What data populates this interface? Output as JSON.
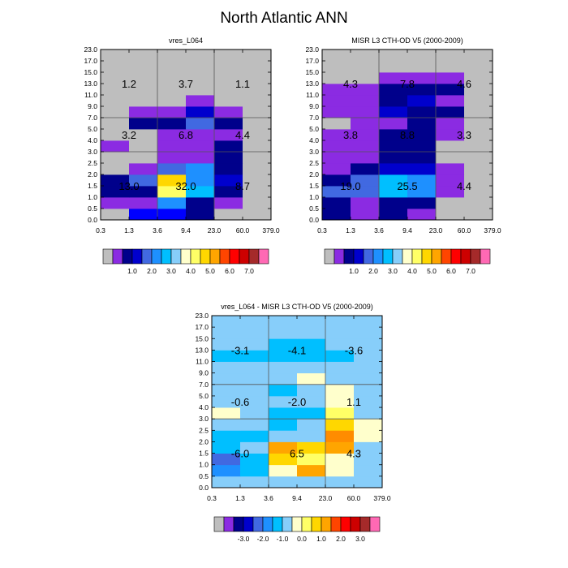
{
  "figure_title": "North Atlantic ANN",
  "chart_data": [
    {
      "type": "heatmap",
      "title": "vres_L064",
      "x_edges": [
        "0.3",
        "1.3",
        "3.6",
        "9.4",
        "23.0",
        "60.0",
        "379.0"
      ],
      "y_edges": [
        "0.0",
        "0.5",
        "1.0",
        "1.5",
        "2.0",
        "2.5",
        "3.0",
        "4.0",
        "5.0",
        "7.0",
        "9.0",
        "11.0",
        "13.0",
        "15.0",
        "17.0",
        "23.0"
      ],
      "cells": [
        [
          "#BEBEBE",
          "#0000FF",
          "#0000FF",
          "#00008B",
          "#BEBEBE",
          "#BEBEBE"
        ],
        [
          "#8B2BE2",
          "#8B2BE2",
          "#1E90FF",
          "#00008B",
          "#8B2BE2",
          "#BEBEBE"
        ],
        [
          "#00008B",
          "#00008B",
          "#FFFF66",
          "#00BFFF",
          "#00008B",
          "#BEBEBE"
        ],
        [
          "#00008B",
          "#4169E1",
          "#FFD700",
          "#1E90FF",
          "#0000CD",
          "#BEBEBE"
        ],
        [
          "#BEBEBE",
          "#8B2BE2",
          "#4169E1",
          "#1E90FF",
          "#00008B",
          "#BEBEBE"
        ],
        [
          "#BEBEBE",
          "#BEBEBE",
          "#8B2BE2",
          "#8B2BE2",
          "#00008B",
          "#BEBEBE"
        ],
        [
          "#8B2BE2",
          "#BEBEBE",
          "#8B2BE2",
          "#8B2BE2",
          "#00008B",
          "#BEBEBE"
        ],
        [
          "#BEBEBE",
          "#BEBEBE",
          "#8B2BE2",
          "#8B2BE2",
          "#8B2BE2",
          "#BEBEBE"
        ],
        [
          "#BEBEBE",
          "#00008B",
          "#00008B",
          "#4169E1",
          "#00008B",
          "#BEBEBE"
        ],
        [
          "#BEBEBE",
          "#8B2BE2",
          "#8B2BE2",
          "#0000CD",
          "#8B2BE2",
          "#BEBEBE"
        ],
        [
          "#BEBEBE",
          "#BEBEBE",
          "#BEBEBE",
          "#8B2BE2",
          "#BEBEBE",
          "#BEBEBE"
        ],
        [
          "#BEBEBE",
          "#BEBEBE",
          "#BEBEBE",
          "#BEBEBE",
          "#BEBEBE",
          "#BEBEBE"
        ],
        [
          "#BEBEBE",
          "#BEBEBE",
          "#BEBEBE",
          "#BEBEBE",
          "#BEBEBE",
          "#BEBEBE"
        ],
        [
          "#BEBEBE",
          "#BEBEBE",
          "#BEBEBE",
          "#BEBEBE",
          "#BEBEBE",
          "#BEBEBE"
        ],
        [
          "#BEBEBE",
          "#BEBEBE",
          "#BEBEBE",
          "#BEBEBE",
          "#BEBEBE",
          "#BEBEBE"
        ]
      ],
      "annotations": [
        {
          "text": "1.2",
          "x": 1,
          "y": 2
        },
        {
          "text": "3.7",
          "x": 3,
          "y": 2
        },
        {
          "text": "1.1",
          "x": 5,
          "y": 2
        },
        {
          "text": "3.2",
          "x": 1,
          "y": 1
        },
        {
          "text": "6.8",
          "x": 3,
          "y": 1
        },
        {
          "text": "4.4",
          "x": 5,
          "y": 1
        },
        {
          "text": "13.0",
          "x": 1,
          "y": 0
        },
        {
          "text": "32.0",
          "x": 3,
          "y": 0
        },
        {
          "text": "8.7",
          "x": 5,
          "y": 0
        }
      ],
      "colorbar": {
        "colors": [
          "#BEBEBE",
          "#8B2BE2",
          "#00008B",
          "#0000CD",
          "#4169E1",
          "#1E90FF",
          "#00BFFF",
          "#87CEFA",
          "#FFFFCC",
          "#FFFF66",
          "#FFD700",
          "#FFA500",
          "#FF4500",
          "#FF0000",
          "#CD0000",
          "#A52A2A",
          "#FF69B4"
        ],
        "labels": [
          {
            "text": "1.0",
            "after": 2
          },
          {
            "text": "2.0",
            "after": 4
          },
          {
            "text": "3.0",
            "after": 6
          },
          {
            "text": "4.0",
            "after": 8
          },
          {
            "text": "5.0",
            "after": 10
          },
          {
            "text": "6.0",
            "after": 12
          },
          {
            "text": "7.0",
            "after": 14
          }
        ]
      }
    },
    {
      "type": "heatmap",
      "title": "MISR L3 CTH-OD V5 (2000-2009)",
      "x_edges": [
        "0.3",
        "1.3",
        "3.6",
        "9.4",
        "23.0",
        "60.0",
        "379.0"
      ],
      "y_edges": [
        "0.0",
        "0.5",
        "1.0",
        "1.5",
        "2.0",
        "2.5",
        "3.0",
        "4.0",
        "5.0",
        "7.0",
        "9.0",
        "11.0",
        "13.0",
        "15.0",
        "17.0",
        "23.0"
      ],
      "cells": [
        [
          "#00008B",
          "#8B2BE2",
          "#00008B",
          "#8B2BE2",
          "#BEBEBE",
          "#BEBEBE"
        ],
        [
          "#00008B",
          "#8B2BE2",
          "#00008B",
          "#00008B",
          "#BEBEBE",
          "#BEBEBE"
        ],
        [
          "#4169E1",
          "#4169E1",
          "#00BFFF",
          "#1E90FF",
          "#8B2BE2",
          "#BEBEBE"
        ],
        [
          "#00008B",
          "#4169E1",
          "#00BFFF",
          "#1E90FF",
          "#8B2BE2",
          "#BEBEBE"
        ],
        [
          "#8B2BE2",
          "#00008B",
          "#0000CD",
          "#0000CD",
          "#8B2BE2",
          "#BEBEBE"
        ],
        [
          "#8B2BE2",
          "#8B2BE2",
          "#00008B",
          "#00008B",
          "#BEBEBE",
          "#BEBEBE"
        ],
        [
          "#8B2BE2",
          "#8B2BE2",
          "#00008B",
          "#00008B",
          "#BEBEBE",
          "#BEBEBE"
        ],
        [
          "#8B2BE2",
          "#8B2BE2",
          "#00008B",
          "#00008B",
          "#8B2BE2",
          "#BEBEBE"
        ],
        [
          "#BEBEBE",
          "#8B2BE2",
          "#8B2BE2",
          "#00008B",
          "#8B2BE2",
          "#BEBEBE"
        ],
        [
          "#8B2BE2",
          "#8B2BE2",
          "#0000CD",
          "#00008B",
          "#00008B",
          "#BEBEBE"
        ],
        [
          "#8B2BE2",
          "#8B2BE2",
          "#00008B",
          "#0000CD",
          "#8B2BE2",
          "#BEBEBE"
        ],
        [
          "#8B2BE2",
          "#8B2BE2",
          "#00008B",
          "#00008B",
          "#00008B",
          "#BEBEBE"
        ],
        [
          "#BEBEBE",
          "#BEBEBE",
          "#8B2BE2",
          "#8B2BE2",
          "#8B2BE2",
          "#BEBEBE"
        ],
        [
          "#BEBEBE",
          "#BEBEBE",
          "#BEBEBE",
          "#BEBEBE",
          "#BEBEBE",
          "#BEBEBE"
        ],
        [
          "#BEBEBE",
          "#BEBEBE",
          "#BEBEBE",
          "#BEBEBE",
          "#BEBEBE",
          "#BEBEBE"
        ]
      ],
      "annotations": [
        {
          "text": "4.3",
          "x": 1,
          "y": 2
        },
        {
          "text": "7.8",
          "x": 3,
          "y": 2
        },
        {
          "text": "4.6",
          "x": 5,
          "y": 2
        },
        {
          "text": "3.8",
          "x": 1,
          "y": 1
        },
        {
          "text": "8.8",
          "x": 3,
          "y": 1
        },
        {
          "text": "3.3",
          "x": 5,
          "y": 1
        },
        {
          "text": "19.0",
          "x": 1,
          "y": 0
        },
        {
          "text": "25.5",
          "x": 3,
          "y": 0
        },
        {
          "text": "4.4",
          "x": 5,
          "y": 0
        }
      ],
      "colorbar": {
        "colors": [
          "#BEBEBE",
          "#8B2BE2",
          "#00008B",
          "#0000CD",
          "#4169E1",
          "#1E90FF",
          "#00BFFF",
          "#87CEFA",
          "#FFFFCC",
          "#FFFF66",
          "#FFD700",
          "#FFA500",
          "#FF4500",
          "#FF0000",
          "#CD0000",
          "#A52A2A",
          "#FF69B4"
        ],
        "labels": [
          {
            "text": "1.0",
            "after": 2
          },
          {
            "text": "2.0",
            "after": 4
          },
          {
            "text": "3.0",
            "after": 6
          },
          {
            "text": "4.0",
            "after": 8
          },
          {
            "text": "5.0",
            "after": 10
          },
          {
            "text": "6.0",
            "after": 12
          },
          {
            "text": "7.0",
            "after": 14
          }
        ]
      }
    },
    {
      "type": "heatmap",
      "title": "vres_L064 - MISR L3 CTH-OD V5 (2000-2009)",
      "x_edges": [
        "0.3",
        "1.3",
        "3.6",
        "9.4",
        "23.0",
        "60.0",
        "379.0"
      ],
      "y_edges": [
        "0.0",
        "0.5",
        "1.0",
        "1.5",
        "2.0",
        "2.5",
        "3.0",
        "4.0",
        "5.0",
        "7.0",
        "9.0",
        "11.0",
        "13.0",
        "15.0",
        "17.0",
        "23.0"
      ],
      "cells": [
        [
          "#87CEFA",
          "#87CEFA",
          "#87CEFA",
          "#87CEFA",
          "#87CEFA",
          "#87CEFA"
        ],
        [
          "#1E90FF",
          "#00BFFF",
          "#FFFFCC",
          "#FFA500",
          "#FFFFCC",
          "#87CEFA"
        ],
        [
          "#4169E1",
          "#00BFFF",
          "#FFD700",
          "#FFFF66",
          "#FFFFCC",
          "#87CEFA"
        ],
        [
          "#00BFFF",
          "#87CEFA",
          "#FFA500",
          "#FFD700",
          "#FFA500",
          "#87CEFA"
        ],
        [
          "#00BFFF",
          "#00BFFF",
          "#87CEFA",
          "#87CEFA",
          "#FF8C00",
          "#FFFFCC"
        ],
        [
          "#87CEFA",
          "#87CEFA",
          "#00BFFF",
          "#87CEFA",
          "#FFD700",
          "#FFFFCC"
        ],
        [
          "#FFFFCC",
          "#87CEFA",
          "#00BFFF",
          "#00BFFF",
          "#FFFF66",
          "#87CEFA"
        ],
        [
          "#87CEFA",
          "#87CEFA",
          "#87CEFA",
          "#87CEFA",
          "#FFFFCC",
          "#87CEFA"
        ],
        [
          "#87CEFA",
          "#87CEFA",
          "#00BFFF",
          "#87CEFA",
          "#FFFFCC",
          "#87CEFA"
        ],
        [
          "#87CEFA",
          "#87CEFA",
          "#87CEFA",
          "#FFFFCC",
          "#87CEFA",
          "#87CEFA"
        ],
        [
          "#87CEFA",
          "#87CEFA",
          "#87CEFA",
          "#87CEFA",
          "#87CEFA",
          "#87CEFA"
        ],
        [
          "#00BFFF",
          "#00BFFF",
          "#00BFFF",
          "#00BFFF",
          "#00BFFF",
          "#87CEFA"
        ],
        [
          "#87CEFA",
          "#87CEFA",
          "#00BFFF",
          "#00BFFF",
          "#87CEFA",
          "#87CEFA"
        ],
        [
          "#87CEFA",
          "#87CEFA",
          "#87CEFA",
          "#87CEFA",
          "#87CEFA",
          "#87CEFA"
        ],
        [
          "#87CEFA",
          "#87CEFA",
          "#87CEFA",
          "#87CEFA",
          "#87CEFA",
          "#87CEFA"
        ]
      ],
      "annotations": [
        {
          "text": "-3.1",
          "x": 1,
          "y": 2
        },
        {
          "text": "-4.1",
          "x": 3,
          "y": 2
        },
        {
          "text": "-3.6",
          "x": 5,
          "y": 2
        },
        {
          "text": "-0.6",
          "x": 1,
          "y": 1
        },
        {
          "text": "-2.0",
          "x": 3,
          "y": 1
        },
        {
          "text": "1.1",
          "x": 5,
          "y": 1
        },
        {
          "text": "-6.0",
          "x": 1,
          "y": 0
        },
        {
          "text": "6.5",
          "x": 3,
          "y": 0
        },
        {
          "text": "4.3",
          "x": 5,
          "y": 0
        }
      ],
      "colorbar": {
        "colors": [
          "#BEBEBE",
          "#8B2BE2",
          "#00008B",
          "#0000CD",
          "#4169E1",
          "#1E90FF",
          "#00BFFF",
          "#87CEFA",
          "#FFFFCC",
          "#FFFF66",
          "#FFD700",
          "#FFA500",
          "#FF4500",
          "#FF0000",
          "#CD0000",
          "#A52A2A",
          "#FF69B4"
        ],
        "labels": [
          {
            "text": "-3.0",
            "after": 2
          },
          {
            "text": "-2.0",
            "after": 4
          },
          {
            "text": "-1.0",
            "after": 6
          },
          {
            "text": "0.0",
            "after": 8
          },
          {
            "text": "1.0",
            "after": 10
          },
          {
            "text": "2.0",
            "after": 12
          },
          {
            "text": "3.0",
            "after": 14
          }
        ]
      }
    }
  ]
}
